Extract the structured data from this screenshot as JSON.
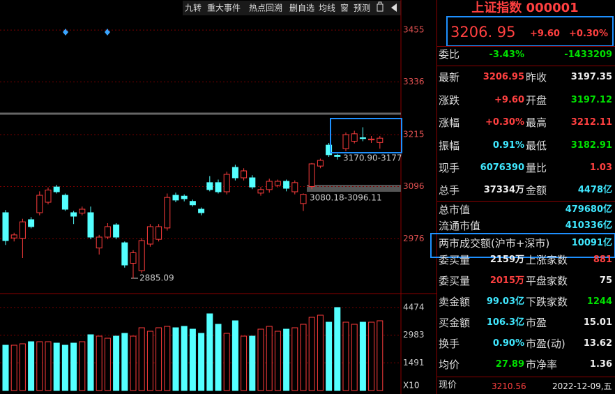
{
  "toolbar": [
    "九转",
    "重大事件",
    "热点回溯",
    "删自选",
    "均线",
    "窗",
    "预测"
  ],
  "chart_data": {
    "type": "candlestick",
    "open": [
      3036,
      2978,
      2977,
      3020,
      3036,
      3060,
      3095,
      3076,
      3036,
      3035,
      3036,
      2955,
      2980,
      3008,
      2967,
      2920,
      2903,
      2964,
      2975,
      3001,
      3076,
      3074,
      3062,
      3044,
      3105,
      3105,
      3084,
      3140,
      3116,
      3116,
      3081,
      3089,
      3099,
      3108,
      3084,
      3057,
      3096.11,
      3143,
      3191,
      3168,
      3183,
      3200,
      3208,
      3203,
      3197.12
    ],
    "high": [
      3042,
      2990,
      3022,
      3026,
      3085,
      3094,
      3100,
      3080,
      3040,
      3050,
      3050,
      2985,
      3012,
      3012,
      2970,
      2950,
      2978,
      3010,
      3010,
      3080,
      3082,
      3078,
      3066,
      3048,
      3120,
      3112,
      3130,
      3146,
      3138,
      3122,
      3095,
      3114,
      3112,
      3112,
      3110,
      3080.18,
      3150,
      3160,
      3196,
      3170.9,
      3220,
      3224,
      3232,
      3212,
      3212.11
    ],
    "low": [
      2962,
      2970,
      2932,
      3000,
      3030,
      3055,
      3080,
      3040,
      3010,
      3030,
      2975,
      2940,
      2975,
      2975,
      2910,
      2885.09,
      2898,
      2958,
      2970,
      2995,
      3060,
      3062,
      3050,
      3030,
      3085,
      3080,
      3078,
      3110,
      3110,
      3090,
      3075,
      3082,
      3094,
      3085,
      3078,
      3040,
      3090,
      3138,
      3164,
      3158,
      3177,
      3195,
      3200,
      3196,
      3182.91
    ],
    "close": [
      2972,
      2985,
      3015,
      3004,
      3076,
      3088,
      3084,
      3044,
      3028,
      3044,
      2980,
      2980,
      3004,
      2980,
      2916,
      2944,
      2972,
      3004,
      3004,
      3071,
      3065,
      3068,
      3054,
      3036,
      3089,
      3084,
      3124,
      3116,
      3132,
      3095,
      3089,
      3108,
      3108,
      3092,
      3105,
      3078,
      3148,
      3156,
      3169,
      3165,
      3215,
      3217,
      3206,
      3205,
      3206.95
    ],
    "volume": [
      2443,
      2443,
      2519,
      2631,
      2631,
      2631,
      2556,
      2443,
      2556,
      2631,
      3007,
      2932,
      2819,
      2932,
      3082,
      2932,
      3383,
      3195,
      3383,
      3458,
      3383,
      3458,
      3308,
      3082,
      4135,
      3571,
      3082,
      3759,
      2932,
      2932,
      3308,
      3458,
      3195,
      3308,
      3383,
      3571,
      3947,
      4060,
      3684,
      4474,
      3684,
      3571,
      3684,
      3684,
      3759
    ],
    "ylim": [
      2852,
      3524
    ],
    "yticks": [
      3455,
      3336,
      3215,
      3096,
      2976
    ],
    "volume_ylim": [
      0,
      5150
    ],
    "volume_yticks": [
      4474,
      2983,
      1491
    ],
    "volume_unit": "X10",
    "up_color": "#ff3c3c",
    "down_color": "#54ffff",
    "annotations": [
      "2885.09",
      "3170.90-3177",
      "3080.18-3096.11"
    ]
  },
  "quote": {
    "title": "上证指数 000001",
    "price": "3206. 95",
    "change": "+9.60",
    "percent": "+0.30%",
    "weibi": [
      "委比",
      "-3.43%",
      "-1433209"
    ],
    "rows": [
      [
        "最新",
        "3206.95",
        "昨收",
        "3197.35"
      ],
      [
        "涨跌",
        "+9.60",
        "开盘",
        "3197.12"
      ],
      [
        "涨幅",
        "+0.30%",
        "最高",
        "3212.11"
      ],
      [
        "振幅",
        "0.91%",
        "最低",
        "3182.91"
      ],
      [
        "现手",
        "6076390",
        "量比",
        "1.03"
      ],
      [
        "总手",
        "37334万",
        "金额",
        "4478亿"
      ]
    ],
    "row_colors": [
      [
        "red",
        "white"
      ],
      [
        "red",
        "green"
      ],
      [
        "red",
        "red"
      ],
      [
        "cyan",
        "green"
      ],
      [
        "cyan",
        "red"
      ],
      [
        "white",
        "cyan"
      ]
    ],
    "market": [
      [
        "总市值",
        "479680亿"
      ],
      [
        "流通市值",
        "410336亿"
      ],
      [
        "两市成交额(沪市+深市)",
        "10091亿"
      ]
    ],
    "rows2": [
      [
        "委买量",
        "2159万",
        "上涨家数",
        "881"
      ],
      [
        "委买量",
        "2015万",
        "平盘家数",
        "75"
      ],
      [
        "卖金额",
        "99.03亿",
        "下跌家数",
        "1244"
      ],
      [
        "买金额",
        "106.3亿",
        "市盈",
        "15.01"
      ],
      [
        "换手",
        "0.90%",
        "市盈(动)",
        "13.62"
      ],
      [
        "均价",
        "27.89",
        "市净率",
        "1.36"
      ]
    ],
    "rows2_colors": [
      [
        "white",
        "red"
      ],
      [
        "red",
        "white"
      ],
      [
        "cyan",
        "green"
      ],
      [
        "cyan",
        "white"
      ],
      [
        "cyan",
        "white"
      ],
      [
        "green",
        "white"
      ]
    ],
    "footer": [
      "现价",
      "3210.56",
      "2022-12-09,五"
    ]
  }
}
